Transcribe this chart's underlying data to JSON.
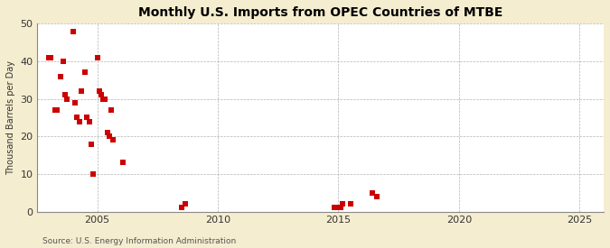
{
  "title": "Monthly U.S. Imports from OPEC Countries of MTBE",
  "ylabel": "Thousand Barrels per Day",
  "source": "Source: U.S. Energy Information Administration",
  "xlim": [
    2002.5,
    2026
  ],
  "ylim": [
    0,
    50
  ],
  "xticks": [
    2005,
    2010,
    2015,
    2020,
    2025
  ],
  "yticks": [
    0,
    10,
    20,
    30,
    40,
    50
  ],
  "outer_background": "#f5edcf",
  "plot_background": "#ffffff",
  "marker_color": "#cc0000",
  "marker_size": 5,
  "grid_color": "#aaaaaa",
  "data_points": [
    [
      2003.0,
      41.0
    ],
    [
      2003.08,
      41.0
    ],
    [
      2003.25,
      27.0
    ],
    [
      2003.33,
      27.0
    ],
    [
      2003.5,
      36.0
    ],
    [
      2003.58,
      40.0
    ],
    [
      2003.67,
      31.0
    ],
    [
      2003.75,
      30.0
    ],
    [
      2004.0,
      48.0
    ],
    [
      2004.08,
      29.0
    ],
    [
      2004.17,
      25.0
    ],
    [
      2004.25,
      24.0
    ],
    [
      2004.33,
      32.0
    ],
    [
      2004.5,
      37.0
    ],
    [
      2004.58,
      25.0
    ],
    [
      2004.67,
      24.0
    ],
    [
      2004.75,
      18.0
    ],
    [
      2004.83,
      10.0
    ],
    [
      2005.0,
      41.0
    ],
    [
      2005.08,
      32.0
    ],
    [
      2005.17,
      31.0
    ],
    [
      2005.25,
      30.0
    ],
    [
      2005.33,
      30.0
    ],
    [
      2005.42,
      21.0
    ],
    [
      2005.5,
      20.0
    ],
    [
      2005.58,
      27.0
    ],
    [
      2005.67,
      19.0
    ],
    [
      2006.08,
      13.0
    ],
    [
      2008.5,
      1.0
    ],
    [
      2008.67,
      2.0
    ],
    [
      2014.83,
      1.0
    ],
    [
      2015.0,
      1.0
    ],
    [
      2015.08,
      1.0
    ],
    [
      2015.17,
      2.0
    ],
    [
      2015.5,
      2.0
    ],
    [
      2016.42,
      5.0
    ],
    [
      2016.58,
      4.0
    ]
  ]
}
